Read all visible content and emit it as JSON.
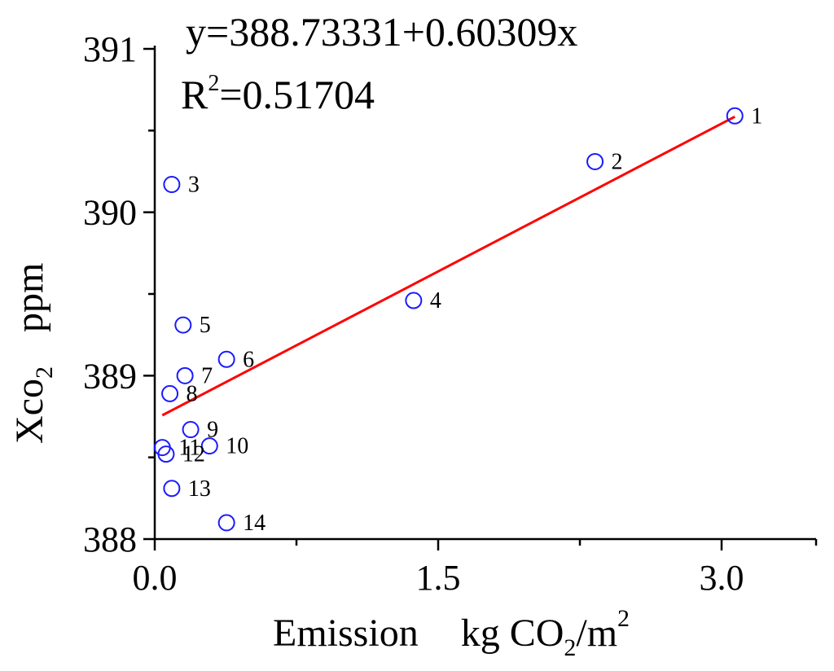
{
  "chart_data": {
    "type": "scatter",
    "xlabel": "Emission",
    "xlabel_unit": {
      "main": "kg CO",
      "sub": "2",
      "mid": "/m",
      "sup": "2"
    },
    "ylabel": {
      "main": "Xco",
      "sub": "2",
      "unit": "ppm"
    },
    "xlim": [
      0,
      3.5
    ],
    "ylim": [
      388,
      391
    ],
    "xticks": [
      0.0,
      1.5,
      3.0
    ],
    "xtick_labels": [
      "0.0",
      "1.5",
      "3.0"
    ],
    "xminor": [
      0.75,
      2.25,
      3.5
    ],
    "yticks": [
      388,
      389,
      390,
      391
    ],
    "ytick_labels": [
      "388",
      "389",
      "390",
      "391"
    ],
    "yminor": [
      388.5,
      389.5,
      390.5
    ],
    "grid": false,
    "equation": "y=388.73331+0.60309x",
    "r2": {
      "label": "R",
      "sup": "2",
      "value": "=0.51704"
    },
    "fit": {
      "intercept": 388.73331,
      "slope": 0.60309,
      "x_range": [
        0.04,
        3.07
      ]
    },
    "colors": {
      "points": "#1a1aff",
      "fit_line": "#ff0000"
    },
    "points": [
      {
        "label": "1",
        "x": 3.07,
        "y": 390.59
      },
      {
        "label": "2",
        "x": 2.33,
        "y": 390.31
      },
      {
        "label": "3",
        "x": 0.09,
        "y": 390.17
      },
      {
        "label": "4",
        "x": 1.37,
        "y": 389.46
      },
      {
        "label": "5",
        "x": 0.15,
        "y": 389.31
      },
      {
        "label": "6",
        "x": 0.38,
        "y": 389.1
      },
      {
        "label": "7",
        "x": 0.16,
        "y": 389.0
      },
      {
        "label": "8",
        "x": 0.08,
        "y": 388.89
      },
      {
        "label": "9",
        "x": 0.19,
        "y": 388.67
      },
      {
        "label": "10",
        "x": 0.29,
        "y": 388.57
      },
      {
        "label": "11",
        "x": 0.04,
        "y": 388.56
      },
      {
        "label": "12",
        "x": 0.06,
        "y": 388.52
      },
      {
        "label": "13",
        "x": 0.09,
        "y": 388.31
      },
      {
        "label": "14",
        "x": 0.38,
        "y": 388.1
      }
    ]
  }
}
